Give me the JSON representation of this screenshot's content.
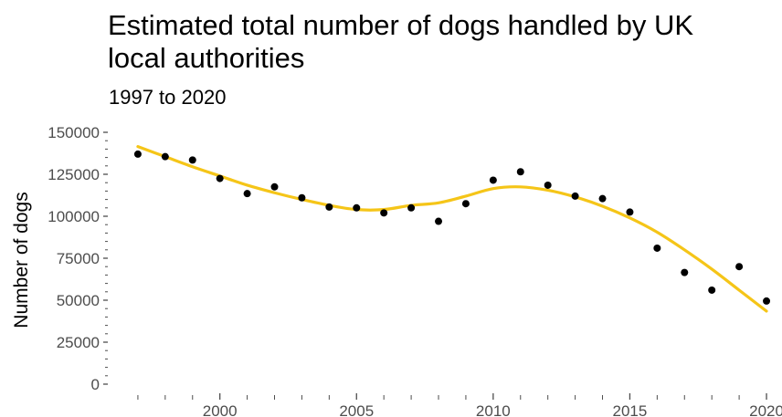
{
  "chart_data": {
    "type": "scatter",
    "title": "Estimated total number of dogs handled by UK local authorities",
    "subtitle": "1997 to 2020",
    "xlabel": "",
    "ylabel": "Number of dogs",
    "xlim": [
      1996.1,
      2020.3
    ],
    "ylim": [
      0,
      150000
    ],
    "x_ticks": [
      2000,
      2005,
      2010,
      2015,
      2020
    ],
    "x_tick_labels": [
      "2000",
      "2005",
      "2010",
      "2015",
      "2020"
    ],
    "y_ticks": [
      0,
      25000,
      50000,
      75000,
      100000,
      125000,
      150000
    ],
    "y_tick_labels": [
      "0",
      "25000",
      "50000",
      "75000",
      "100000",
      "125000",
      "150000"
    ],
    "grid": false,
    "colors": {
      "points": "#000000",
      "trend": "#f5c518",
      "ticks": "#4d4d4d"
    },
    "series": [
      {
        "type": "scatter",
        "x": [
          1997,
          1998,
          1999,
          2000,
          2001,
          2002,
          2003,
          2004,
          2005,
          2006,
          2007,
          2008,
          2009,
          2010,
          2011,
          2012,
          2013,
          2014,
          2015,
          2016,
          2017,
          2018,
          2019,
          2020
        ],
        "values": [
          137000,
          135500,
          133500,
          122500,
          113500,
          117500,
          111000,
          105500,
          105000,
          102000,
          105000,
          97000,
          107500,
          121500,
          126500,
          118500,
          112000,
          110500,
          102500,
          81000,
          66500,
          56000,
          70000,
          49500
        ]
      },
      {
        "type": "line",
        "x": [
          1997,
          1998,
          1999,
          2000,
          2001,
          2002,
          2003,
          2004,
          2005,
          2006,
          2007,
          2008,
          2009,
          2010,
          2011,
          2012,
          2013,
          2014,
          2015,
          2016,
          2017,
          2018,
          2019,
          2020
        ],
        "values": [
          141500,
          135500,
          129500,
          124000,
          118500,
          114000,
          110000,
          106500,
          104000,
          104000,
          106500,
          108000,
          112000,
          116500,
          117500,
          115500,
          111500,
          106000,
          99000,
          90500,
          80000,
          68500,
          56000,
          43500
        ]
      }
    ]
  }
}
